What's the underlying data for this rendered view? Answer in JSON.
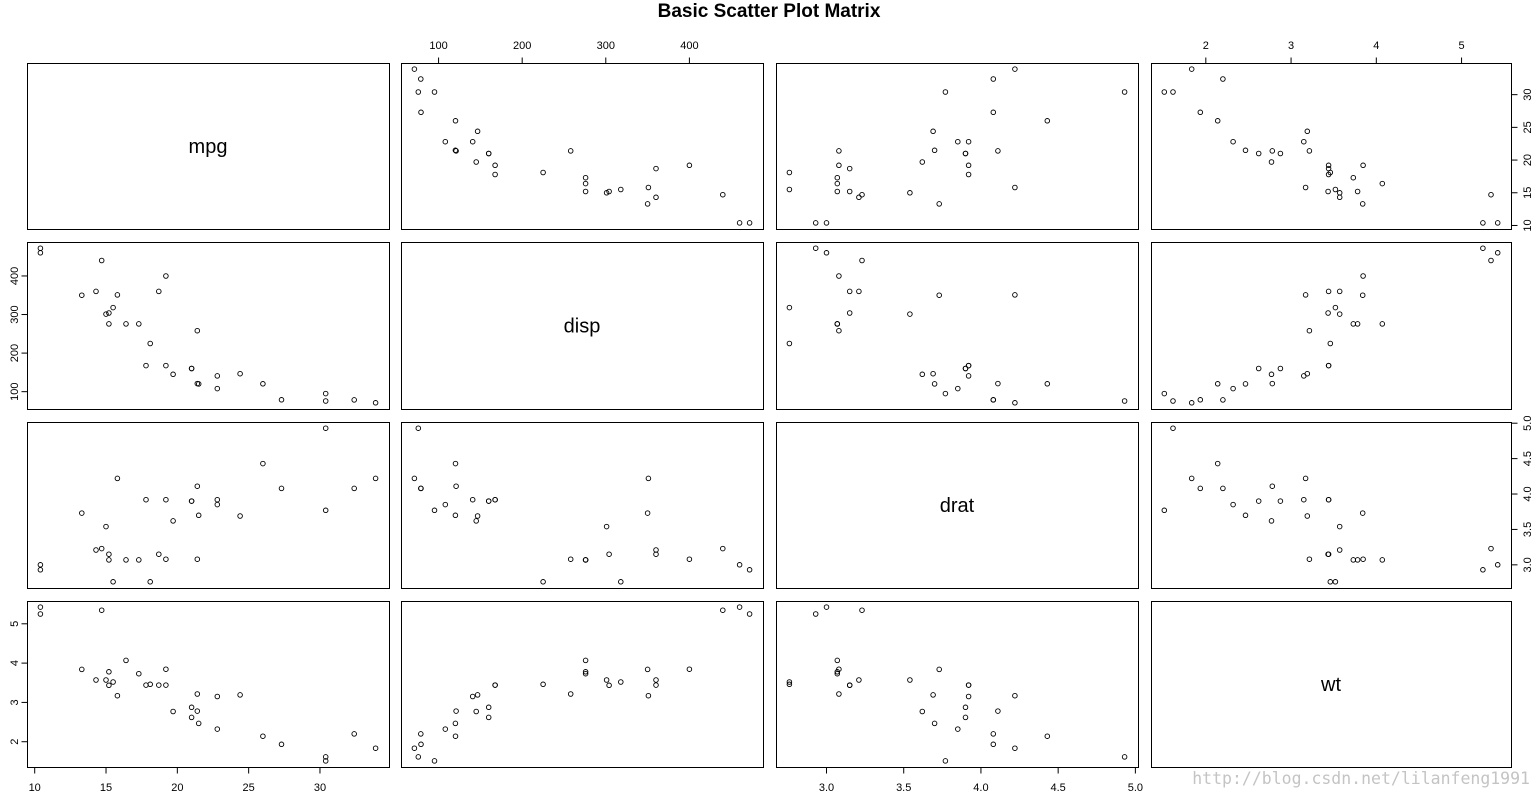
{
  "chart_data": {
    "type": "scatter",
    "title": "Basic Scatter Plot Matrix",
    "variables": [
      "mpg",
      "disp",
      "drat",
      "wt"
    ],
    "data": {
      "mpg": [
        21.0,
        21.0,
        22.8,
        21.4,
        18.7,
        18.1,
        14.3,
        24.4,
        22.8,
        19.2,
        17.8,
        16.4,
        17.3,
        15.2,
        10.4,
        10.4,
        14.7,
        32.4,
        30.4,
        33.9,
        21.5,
        15.5,
        15.2,
        13.3,
        19.2,
        27.3,
        26.0,
        30.4,
        15.8,
        19.7,
        15.0,
        21.4
      ],
      "disp": [
        160,
        160,
        108,
        258,
        360,
        225,
        360,
        146.7,
        140.8,
        167.6,
        167.6,
        275.8,
        275.8,
        275.8,
        472,
        460,
        440,
        78.7,
        75.7,
        71.1,
        120.1,
        318,
        304,
        350,
        400,
        79,
        120.3,
        95.1,
        351,
        145,
        301,
        121
      ],
      "drat": [
        3.9,
        3.9,
        3.85,
        3.08,
        3.15,
        2.76,
        3.21,
        3.69,
        3.92,
        3.92,
        3.92,
        3.07,
        3.07,
        3.07,
        2.93,
        3.0,
        3.23,
        4.08,
        4.93,
        4.22,
        3.7,
        2.76,
        3.15,
        3.73,
        3.08,
        4.08,
        4.43,
        3.77,
        4.22,
        3.62,
        3.54,
        4.11
      ],
      "wt": [
        2.62,
        2.875,
        2.32,
        3.215,
        3.44,
        3.46,
        3.57,
        3.19,
        3.15,
        3.44,
        3.44,
        4.07,
        3.73,
        3.78,
        5.25,
        5.424,
        5.345,
        2.2,
        1.615,
        1.835,
        2.465,
        3.52,
        3.435,
        3.84,
        3.845,
        1.935,
        2.14,
        1.513,
        3.17,
        2.77,
        3.57,
        2.78
      ]
    },
    "ranges": {
      "mpg": [
        9.46,
        34.84
      ],
      "disp": [
        55.06,
        488.04
      ],
      "drat": [
        2.673,
        5.017
      ],
      "wt": [
        1.357,
        5.58
      ]
    },
    "tick_labels": {
      "mpg": [
        "10",
        "15",
        "20",
        "25",
        "30"
      ],
      "disp": [
        "100",
        "200",
        "300",
        "400"
      ],
      "drat": [
        "3.0",
        "3.5",
        "4.0",
        "4.5",
        "5.0"
      ],
      "wt": [
        "2",
        "3",
        "4",
        "5"
      ]
    },
    "grid": false
  },
  "watermark": "http://blog.csdn.net/lilanfeng1991"
}
